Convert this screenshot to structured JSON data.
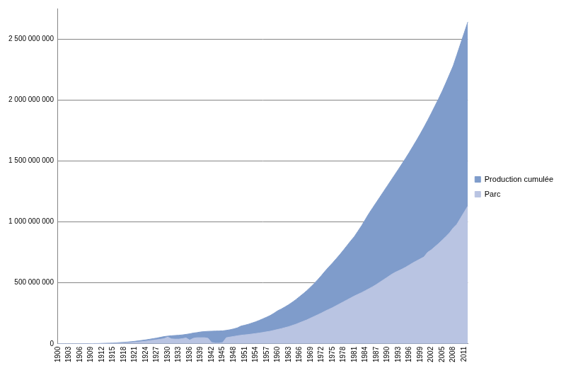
{
  "chart_data": {
    "type": "area",
    "categories": [
      "1900",
      null,
      null,
      "1903",
      null,
      null,
      "1906",
      null,
      null,
      "1909",
      null,
      null,
      "1912",
      null,
      null,
      "1915",
      null,
      null,
      "1918",
      null,
      null,
      "1921",
      null,
      null,
      "1924",
      null,
      null,
      "1927",
      null,
      null,
      "1930",
      null,
      null,
      "1933",
      null,
      null,
      "1936",
      null,
      null,
      "1939",
      null,
      null,
      "1942",
      null,
      null,
      "1945",
      null,
      null,
      "1948",
      null,
      null,
      "1951",
      null,
      null,
      "1954",
      null,
      null,
      "1957",
      null,
      null,
      "1960",
      null,
      null,
      "1963",
      null,
      null,
      "1966",
      null,
      null,
      "1969",
      null,
      null,
      "1972",
      null,
      null,
      "1975",
      null,
      null,
      "1978",
      null,
      null,
      "1981",
      null,
      null,
      "1984",
      null,
      null,
      "1987",
      null,
      null,
      "1990",
      null,
      null,
      "1993",
      null,
      null,
      "1996",
      null,
      null,
      "1999",
      null,
      null,
      "2002",
      null,
      null,
      "2005",
      null,
      null,
      "2008",
      null,
      null,
      "2011",
      null
    ],
    "series": [
      {
        "name": "Production cumulée",
        "color": "#7f9ccb",
        "values": [
          0,
          0,
          0,
          0,
          0,
          0,
          0,
          1000000,
          1000000,
          1000000,
          2000000,
          2000000,
          3000000,
          4000000,
          5000000,
          6000000,
          8000000,
          10000000,
          12000000,
          14000000,
          17000000,
          20000000,
          24000000,
          28000000,
          32000000,
          37000000,
          42000000,
          47000000,
          53000000,
          59000000,
          63000000,
          66000000,
          68000000,
          70000000,
          73000000,
          77000000,
          82000000,
          88000000,
          92000000,
          97000000,
          100000000,
          102000000,
          103000000,
          104000000,
          105000000,
          106000000,
          110000000,
          115000000,
          122000000,
          130000000,
          145000000,
          152000000,
          160000000,
          170000000,
          180000000,
          192000000,
          205000000,
          218000000,
          232000000,
          250000000,
          270000000,
          285000000,
          302000000,
          320000000,
          340000000,
          362000000,
          386000000,
          410000000,
          436000000,
          464000000,
          494000000,
          526000000,
          560000000,
          596000000,
          630000000,
          662000000,
          696000000,
          731000000,
          768000000,
          806000000,
          844000000,
          880000000,
          925000000,
          970000000,
          1020000000,
          1070000000,
          1115000000,
          1160000000,
          1205000000,
          1250000000,
          1295000000,
          1340000000,
          1385000000,
          1430000000,
          1476000000,
          1522000000,
          1570000000,
          1620000000,
          1670000000,
          1722000000,
          1776000000,
          1832000000,
          1890000000,
          1950000000,
          2010000000,
          2072000000,
          2140000000,
          2210000000,
          2280000000,
          2370000000,
          2460000000,
          2550000000,
          2640000000
        ]
      },
      {
        "name": "Parc",
        "color": "#b9c4e2",
        "values": [
          0,
          0,
          0,
          0,
          0,
          0,
          0,
          0,
          0,
          1000000,
          1000000,
          1000000,
          2000000,
          2000000,
          3000000,
          3000000,
          4000000,
          5000000,
          6000000,
          8000000,
          10000000,
          12000000,
          15000000,
          18000000,
          21000000,
          25000000,
          29000000,
          33000000,
          37000000,
          42000000,
          55000000,
          40000000,
          38000000,
          38000000,
          42000000,
          48000000,
          30000000,
          45000000,
          50000000,
          50000000,
          50000000,
          45000000,
          10000000,
          5000000,
          5000000,
          10000000,
          50000000,
          55000000,
          60000000,
          65000000,
          70000000,
          73000000,
          76000000,
          80000000,
          84000000,
          88000000,
          93000000,
          98000000,
          103000000,
          110000000,
          117000000,
          124000000,
          132000000,
          140000000,
          150000000,
          160000000,
          172000000,
          184000000,
          196000000,
          210000000,
          224000000,
          238000000,
          252000000,
          268000000,
          282000000,
          296000000,
          312000000,
          328000000,
          344000000,
          360000000,
          376000000,
          392000000,
          406000000,
          420000000,
          436000000,
          452000000,
          468000000,
          486000000,
          506000000,
          526000000,
          546000000,
          566000000,
          584000000,
          598000000,
          612000000,
          628000000,
          646000000,
          664000000,
          680000000,
          696000000,
          712000000,
          750000000,
          770000000,
          796000000,
          822000000,
          850000000,
          880000000,
          910000000,
          950000000,
          980000000,
          1030000000,
          1080000000,
          1130000000
        ]
      }
    ],
    "ylim": [
      0,
      2750000000
    ],
    "yticks": [
      0,
      {
        "value": 500000000,
        "label": "500 000 000"
      },
      {
        "value": 1000000000,
        "label": "1 000 000 000"
      },
      {
        "value": 1500000000,
        "label": "1 500 000 000"
      },
      {
        "value": 2000000000,
        "label": "2 000 000 000"
      },
      {
        "value": 2500000000,
        "label": "2 500 000 000"
      }
    ],
    "grid": true,
    "legend": "right"
  }
}
